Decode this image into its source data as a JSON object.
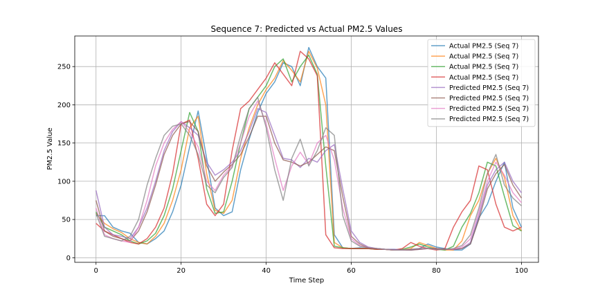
{
  "chart_data": {
    "type": "line",
    "title": "Sequence 7: Predicted vs Actual PM2.5 Values",
    "xlabel": "Time Step",
    "ylabel": "PM2.5 Value",
    "xlim": [
      -5,
      104
    ],
    "ylim": [
      -6,
      290
    ],
    "xticks": [
      0,
      20,
      40,
      60,
      80,
      100
    ],
    "yticks": [
      0,
      50,
      100,
      150,
      200,
      250
    ],
    "grid": true,
    "legend_position": "top-right",
    "series": [
      {
        "name": "Actual PM2.5 (Seq 7)",
        "color": "#1f77b4",
        "x": [
          0,
          2,
          4,
          6,
          8,
          10,
          12,
          14,
          16,
          18,
          20,
          22,
          24,
          26,
          28,
          30,
          32,
          34,
          36,
          38,
          40,
          42,
          44,
          46,
          48,
          50,
          52,
          54,
          56,
          58,
          60,
          62,
          64,
          66,
          68,
          70,
          72,
          74,
          76,
          78,
          80,
          82,
          84,
          86,
          88,
          90,
          92,
          94,
          96,
          98,
          100
        ],
        "values": [
          55,
          55,
          40,
          35,
          32,
          20,
          18,
          25,
          35,
          60,
          95,
          145,
          192,
          130,
          65,
          55,
          60,
          115,
          155,
          190,
          215,
          230,
          255,
          250,
          225,
          275,
          250,
          235,
          30,
          13,
          12,
          13,
          12,
          12,
          11,
          11,
          10,
          10,
          12,
          18,
          14,
          12,
          10,
          10,
          18,
          52,
          70,
          100,
          125,
          65,
          40
        ]
      },
      {
        "name": "Actual PM2.5 (Seq 7)",
        "color": "#ff7f0e",
        "x": [
          0,
          2,
          4,
          6,
          8,
          10,
          12,
          14,
          16,
          18,
          20,
          22,
          24,
          26,
          28,
          30,
          32,
          34,
          36,
          38,
          40,
          42,
          44,
          46,
          48,
          50,
          52,
          54,
          56,
          58,
          60,
          62,
          64,
          66,
          68,
          70,
          72,
          74,
          76,
          78,
          80,
          82,
          84,
          86,
          88,
          90,
          92,
          94,
          96,
          98,
          100
        ],
        "values": [
          58,
          45,
          38,
          33,
          25,
          20,
          18,
          28,
          45,
          75,
          115,
          170,
          185,
          110,
          62,
          58,
          75,
          130,
          170,
          200,
          220,
          235,
          258,
          245,
          230,
          270,
          248,
          200,
          20,
          13,
          12,
          12,
          12,
          11,
          11,
          10,
          10,
          12,
          20,
          16,
          12,
          10,
          10,
          22,
          55,
          75,
          110,
          130,
          105,
          55,
          35
        ]
      },
      {
        "name": "Actual PM2.5 (Seq 7)",
        "color": "#2ca02c",
        "x": [
          0,
          2,
          4,
          6,
          8,
          10,
          12,
          14,
          16,
          18,
          20,
          22,
          24,
          26,
          28,
          30,
          32,
          34,
          36,
          38,
          40,
          42,
          44,
          46,
          48,
          50,
          52,
          54,
          56,
          58,
          60,
          62,
          64,
          66,
          68,
          70,
          72,
          74,
          76,
          78,
          80,
          82,
          84,
          86,
          88,
          90,
          92,
          94,
          96,
          98,
          100
        ],
        "values": [
          60,
          40,
          35,
          30,
          22,
          18,
          22,
          32,
          55,
          90,
          140,
          190,
          165,
          90,
          58,
          60,
          100,
          150,
          195,
          210,
          225,
          250,
          260,
          230,
          250,
          265,
          240,
          120,
          15,
          13,
          12,
          12,
          12,
          11,
          11,
          10,
          11,
          14,
          18,
          14,
          11,
          10,
          15,
          40,
          58,
          85,
          125,
          120,
          80,
          42,
          35
        ]
      },
      {
        "name": "Actual PM2.5 (Seq 7)",
        "color": "#d62728",
        "x": [
          0,
          2,
          4,
          6,
          8,
          10,
          12,
          14,
          16,
          18,
          20,
          22,
          24,
          26,
          28,
          30,
          32,
          34,
          36,
          38,
          40,
          42,
          44,
          46,
          48,
          50,
          52,
          54,
          56,
          58,
          60,
          62,
          64,
          66,
          68,
          70,
          72,
          74,
          76,
          78,
          80,
          82,
          84,
          86,
          88,
          90,
          92,
          94,
          96,
          98,
          100
        ],
        "values": [
          45,
          35,
          30,
          25,
          20,
          18,
          25,
          40,
          65,
          110,
          175,
          180,
          130,
          70,
          55,
          70,
          140,
          195,
          205,
          220,
          235,
          255,
          240,
          225,
          270,
          260,
          238,
          30,
          13,
          12,
          12,
          12,
          12,
          11,
          11,
          10,
          12,
          20,
          15,
          12,
          10,
          12,
          40,
          60,
          75,
          120,
          115,
          70,
          40,
          35,
          40
        ]
      },
      {
        "name": "Predicted PM2.5 (Seq 7)",
        "color": "#9467bd",
        "x": [
          0,
          2,
          4,
          6,
          8,
          10,
          12,
          14,
          16,
          18,
          20,
          22,
          24,
          26,
          28,
          30,
          32,
          34,
          36,
          38,
          40,
          42,
          44,
          46,
          48,
          50,
          52,
          54,
          56,
          58,
          60,
          62,
          64,
          66,
          68,
          70,
          72,
          74,
          76,
          78,
          80,
          82,
          84,
          86,
          88,
          90,
          92,
          94,
          96,
          98,
          100
        ],
        "values": [
          88,
          40,
          30,
          28,
          25,
          40,
          65,
          100,
          140,
          165,
          178,
          170,
          160,
          125,
          108,
          115,
          125,
          140,
          165,
          195,
          190,
          160,
          130,
          128,
          118,
          130,
          125,
          140,
          148,
          90,
          35,
          20,
          14,
          12,
          11,
          11,
          10,
          10,
          11,
          12,
          12,
          11,
          11,
          12,
          20,
          55,
          95,
          115,
          125,
          100,
          85
        ]
      },
      {
        "name": "Predicted PM2.5 (Seq 7)",
        "color": "#8c564b",
        "x": [
          0,
          2,
          4,
          6,
          8,
          10,
          12,
          14,
          16,
          18,
          20,
          22,
          24,
          26,
          28,
          30,
          32,
          34,
          36,
          38,
          40,
          42,
          44,
          46,
          48,
          50,
          52,
          54,
          56,
          58,
          60,
          62,
          64,
          66,
          68,
          70,
          72,
          74,
          76,
          78,
          80,
          82,
          84,
          86,
          88,
          90,
          92,
          94,
          96,
          98,
          100
        ],
        "values": [
          75,
          35,
          28,
          25,
          22,
          35,
          60,
          95,
          135,
          160,
          175,
          178,
          165,
          120,
          100,
          112,
          122,
          135,
          158,
          185,
          185,
          150,
          128,
          125,
          120,
          125,
          135,
          145,
          140,
          80,
          28,
          18,
          13,
          12,
          11,
          10,
          10,
          10,
          11,
          12,
          12,
          11,
          11,
          12,
          18,
          50,
          90,
          110,
          122,
          95,
          78
        ]
      },
      {
        "name": "Predicted PM2.5 (Seq 7)",
        "color": "#e377c2",
        "x": [
          0,
          2,
          4,
          6,
          8,
          10,
          12,
          14,
          16,
          18,
          20,
          22,
          24,
          26,
          28,
          30,
          32,
          34,
          36,
          38,
          40,
          42,
          44,
          46,
          48,
          50,
          52,
          54,
          56,
          58,
          60,
          62,
          64,
          66,
          68,
          70,
          72,
          74,
          76,
          78,
          80,
          82,
          84,
          86,
          88,
          90,
          92,
          94,
          96,
          98,
          100
        ],
        "values": [
          65,
          30,
          25,
          22,
          20,
          40,
          75,
          120,
          150,
          168,
          178,
          165,
          145,
          100,
          88,
          108,
          120,
          150,
          185,
          205,
          175,
          130,
          88,
          120,
          138,
          122,
          150,
          160,
          128,
          65,
          25,
          16,
          13,
          12,
          11,
          10,
          10,
          11,
          12,
          12,
          11,
          11,
          11,
          14,
          25,
          60,
          100,
          125,
          108,
          85,
          72
        ]
      },
      {
        "name": "Predicted PM2.5 (Seq 7)",
        "color": "#7f7f7f",
        "x": [
          0,
          2,
          4,
          6,
          8,
          10,
          12,
          14,
          16,
          18,
          20,
          22,
          24,
          26,
          28,
          30,
          32,
          34,
          36,
          38,
          40,
          42,
          44,
          46,
          48,
          50,
          52,
          54,
          56,
          58,
          60,
          62,
          64,
          66,
          68,
          70,
          72,
          74,
          76,
          78,
          80,
          82,
          84,
          86,
          88,
          90,
          92,
          94,
          96,
          98,
          100
        ],
        "values": [
          58,
          28,
          25,
          22,
          28,
          50,
          95,
          130,
          160,
          172,
          175,
          160,
          135,
          95,
          85,
          105,
          118,
          160,
          195,
          210,
          170,
          115,
          75,
          130,
          155,
          120,
          140,
          170,
          160,
          55,
          22,
          15,
          13,
          12,
          11,
          10,
          10,
          11,
          12,
          12,
          11,
          11,
          12,
          16,
          30,
          65,
          110,
          135,
          95,
          78,
          68
        ]
      }
    ]
  }
}
